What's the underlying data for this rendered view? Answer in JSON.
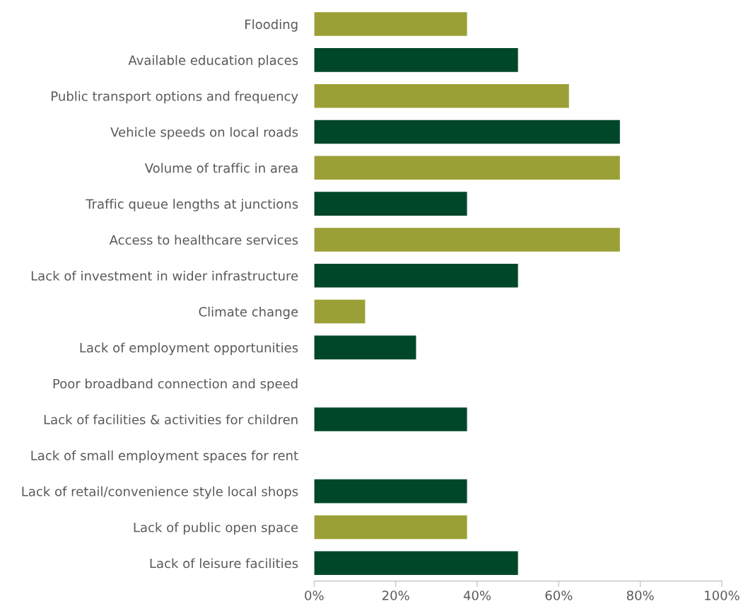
{
  "chart_data": {
    "type": "bar",
    "orientation": "horizontal",
    "categories": [
      "Flooding",
      "Available education places",
      "Public transport options and frequency",
      "Vehicle speeds on local roads",
      "Volume of traffic in area",
      "Traffic queue lengths at junctions",
      "Access to healthcare services",
      "Lack of investment in wider infrastructure",
      "Climate change",
      "Lack of employment opportunities",
      "Poor broadband connection and speed",
      "Lack of facilities & activities for children",
      "Lack of small employment spaces for rent",
      "Lack of retail/convenience style local shops",
      "Lack of public open space",
      "Lack of leisure facilities"
    ],
    "values": [
      37.5,
      50,
      62.5,
      75,
      75,
      37.5,
      75,
      50,
      12.5,
      25,
      0,
      37.5,
      0,
      37.5,
      37.5,
      50
    ],
    "colors": [
      "#9aa035",
      "#00472a",
      "#9aa035",
      "#00472a",
      "#9aa035",
      "#00472a",
      "#9aa035",
      "#00472a",
      "#9aa035",
      "#00472a",
      "#9aa035",
      "#00472a",
      "#9aa035",
      "#00472a",
      "#9aa035",
      "#00472a"
    ],
    "xlim": [
      0,
      100
    ],
    "xticks": [
      {
        "value": 0,
        "label": "0%"
      },
      {
        "value": 20,
        "label": "20%"
      },
      {
        "value": 40,
        "label": "40%"
      },
      {
        "value": 60,
        "label": "60%"
      },
      {
        "value": 80,
        "label": "80%"
      },
      {
        "value": 100,
        "label": "100%"
      }
    ],
    "grid": false
  }
}
